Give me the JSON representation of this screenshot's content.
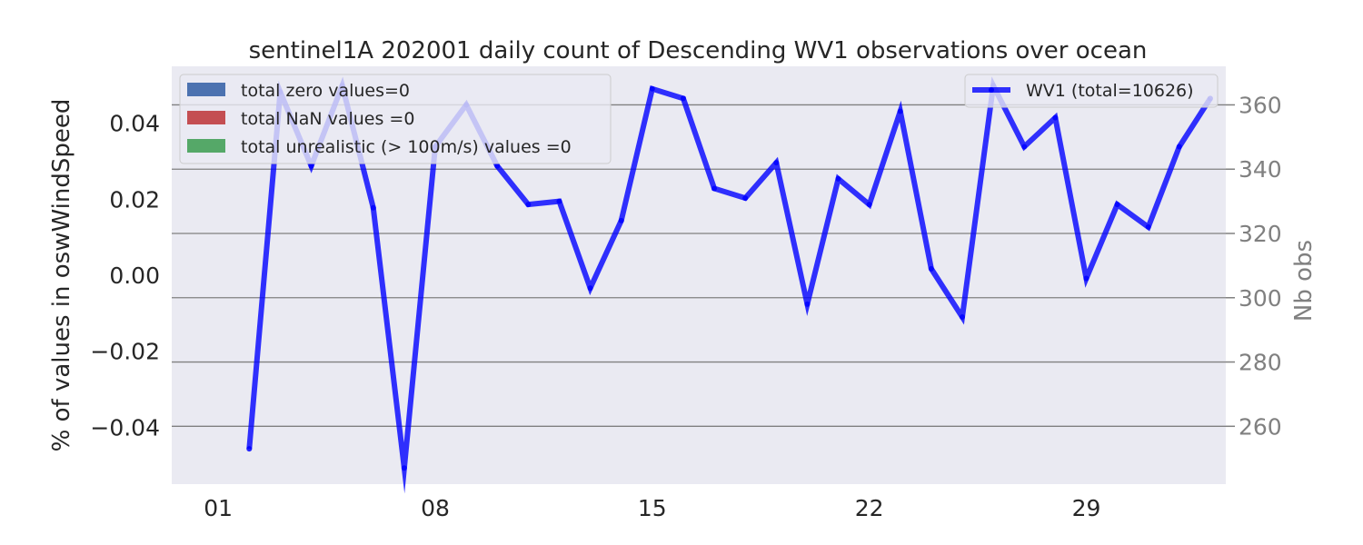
{
  "chart_data": {
    "type": "line",
    "title": "sentinel1A 202001 daily count of Descending WV1 observations over ocean",
    "ylabel_left": "% of values in oswWindSpeed",
    "ylabel_right": "Nb obs",
    "left_axis": {
      "ylim": [
        -0.055,
        0.055
      ],
      "ticks": [
        0.04,
        0.02,
        0.0,
        -0.02,
        -0.04
      ],
      "tick_labels": [
        "0.04",
        "0.02",
        "0.00",
        "−0.02",
        "−0.04"
      ]
    },
    "right_axis": {
      "ylim": [
        242,
        372
      ],
      "ticks": [
        360,
        340,
        320,
        300,
        280,
        260
      ],
      "tick_labels": [
        "360",
        "340",
        "320",
        "300",
        "280",
        "260"
      ]
    },
    "x_axis": {
      "xlim": [
        -1.5,
        32.5
      ],
      "ticks": [
        0,
        7,
        14,
        21,
        28
      ],
      "tick_labels": [
        "01",
        "08",
        "15",
        "22",
        "29"
      ]
    },
    "grid": true,
    "series": [
      {
        "name": "WV1 (total=10626)",
        "axis": "right",
        "color": "#0000ff",
        "x": [
          1,
          2,
          3,
          4,
          5,
          6,
          7,
          8,
          9,
          10,
          11,
          12,
          13,
          14,
          15,
          16,
          17,
          18,
          19,
          20,
          21,
          22,
          23,
          24,
          25,
          26,
          27,
          28,
          29,
          30,
          31,
          32
        ],
        "values": [
          253,
          364,
          341,
          366,
          328,
          247,
          347,
          360,
          341,
          329,
          330,
          303,
          324,
          365,
          362,
          334,
          331,
          342,
          298,
          337,
          329,
          358,
          309,
          294,
          366,
          347,
          356,
          306,
          329,
          322,
          347,
          362
        ]
      }
    ],
    "bar_legend": [
      {
        "label": "total zero values=0",
        "color": "#4c72b0"
      },
      {
        "label": "total NaN values =0",
        "color": "#c44e52"
      },
      {
        "label": "total unrealistic (> 100m/s) values =0",
        "color": "#55a868"
      }
    ],
    "legend_positions": {
      "bars": "upper-left",
      "line": "upper-right"
    }
  }
}
